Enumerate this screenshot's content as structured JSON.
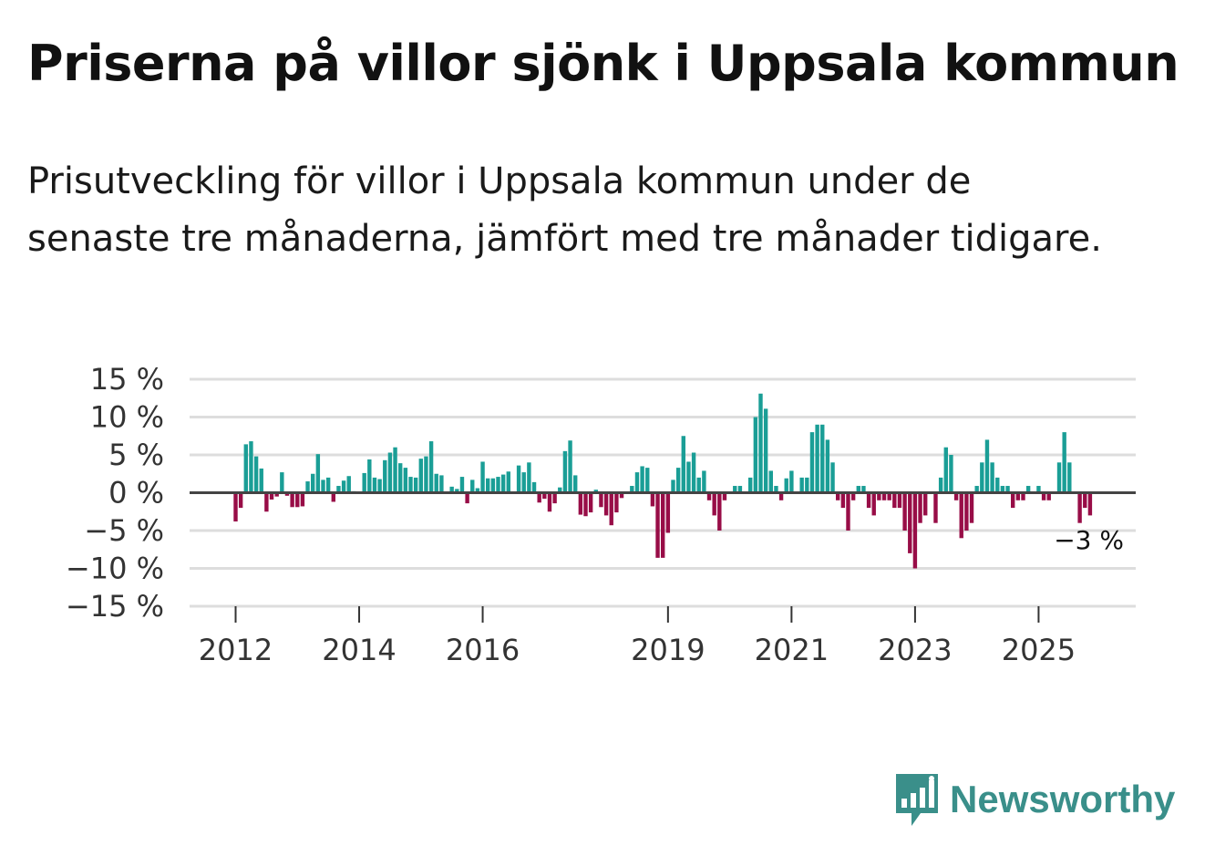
{
  "title": "Priserna på villor sjönk i Uppsala kommun",
  "subtitle": "Prisutveckling för villor i Uppsala kommun under de senaste tre månaderna, jämfört med tre månader tidigare.",
  "brand": {
    "name": "Newsworthy",
    "color": "#3a8f8a",
    "icon": "bar-chart-speech-bubble-icon"
  },
  "colors": {
    "positive": "#1a9e96",
    "negative": "#980d47",
    "zero_line": "#444444",
    "grid": "#dddddd"
  },
  "chart_data": {
    "type": "bar",
    "title": "Priserna på villor sjönk i Uppsala kommun",
    "xlabel": "",
    "ylabel": "",
    "ylim": [
      -15,
      15
    ],
    "yticks": [
      15,
      10,
      5,
      0,
      -5,
      -10,
      -15
    ],
    "ytick_labels": [
      "15 %",
      "10 %",
      "5 %",
      "0 %",
      "−5 %",
      "−10 %",
      "−15 %"
    ],
    "x_start": "2012-01",
    "xtick_labels": [
      {
        "label": "2012",
        "index": 0
      },
      {
        "label": "2014",
        "index": 24
      },
      {
        "label": "2016",
        "index": 48
      },
      {
        "label": "2019",
        "index": 84
      },
      {
        "label": "2021",
        "index": 108
      },
      {
        "label": "2023",
        "index": 132
      },
      {
        "label": "2025",
        "index": 156
      }
    ],
    "last_value_label": "−3 %",
    "values": [
      -3.8,
      -2.0,
      6.4,
      6.8,
      4.8,
      3.2,
      -2.5,
      -0.9,
      -0.5,
      2.7,
      -0.4,
      -1.9,
      -1.9,
      -1.8,
      1.5,
      2.5,
      5.1,
      1.7,
      2.0,
      -1.2,
      0.9,
      1.6,
      2.2,
      0.2,
      0.0,
      2.6,
      4.4,
      2.0,
      1.8,
      4.3,
      5.3,
      6.0,
      3.9,
      3.3,
      2.1,
      2.0,
      4.5,
      4.8,
      6.8,
      2.5,
      2.3,
      0.0,
      0.8,
      0.5,
      2.1,
      -1.4,
      1.7,
      0.6,
      4.1,
      1.9,
      1.9,
      2.1,
      2.4,
      2.8,
      0.0,
      3.6,
      2.7,
      4.0,
      1.4,
      -1.3,
      -0.8,
      -2.5,
      -1.4,
      0.7,
      5.5,
      6.9,
      2.3,
      -2.9,
      -3.1,
      -2.6,
      0.4,
      -1.9,
      -3.0,
      -4.3,
      -2.6,
      -0.7,
      0.0,
      0.9,
      2.7,
      3.5,
      3.3,
      -1.8,
      -8.6,
      -8.6,
      -5.3,
      1.7,
      3.3,
      7.5,
      4.1,
      5.3,
      2.0,
      2.9,
      -1.0,
      -3.0,
      -5.0,
      -1.0,
      0.0,
      0.9,
      0.9,
      0.0,
      2.0,
      10.0,
      13.1,
      11.1,
      2.9,
      0.9,
      -1.0,
      1.9,
      2.9,
      0.0,
      2.0,
      2.0,
      8.0,
      9.0,
      9.0,
      7.0,
      4.0,
      -1.0,
      -2.0,
      -5.0,
      -1.0,
      0.9,
      0.9,
      -2.0,
      -3.0,
      -1.0,
      -1.0,
      -1.0,
      -2.0,
      -2.0,
      -5.0,
      -8.0,
      -10.0,
      -4.0,
      -3.0,
      0.0,
      -4.0,
      2.0,
      6.0,
      5.0,
      -1.0,
      -6.0,
      -5.0,
      -4.0,
      0.9,
      4.0,
      7.0,
      4.0,
      2.0,
      0.9,
      0.9,
      -2.0,
      -1.0,
      -1.0,
      0.9,
      0.0,
      0.9,
      -1.0,
      -1.0,
      0.0,
      4.0,
      8.0,
      4.0,
      0.0,
      -4.0,
      -2.0,
      -3.0
    ]
  }
}
